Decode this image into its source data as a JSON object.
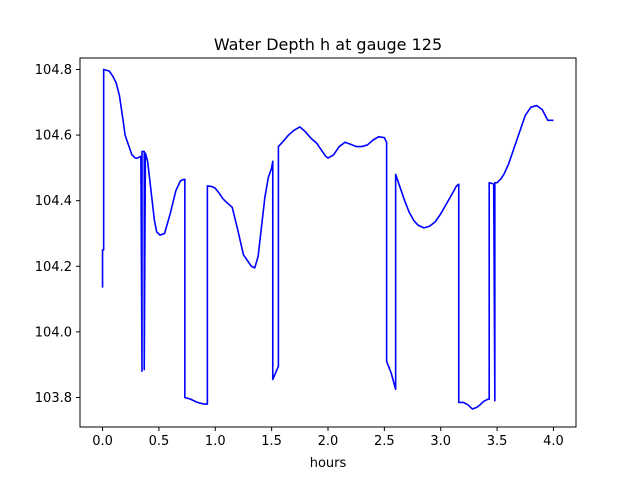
{
  "chart_data": {
    "type": "line",
    "title": "Water Depth h at gauge 125",
    "xlabel": "hours",
    "ylabel": "",
    "xlim": [
      -0.2,
      4.2
    ],
    "ylim": [
      103.71,
      104.835
    ],
    "xticks": [
      0.0,
      0.5,
      1.0,
      1.5,
      2.0,
      2.5,
      3.0,
      3.5,
      4.0
    ],
    "xtick_labels": [
      "0.0",
      "0.5",
      "1.0",
      "1.5",
      "2.0",
      "2.5",
      "3.0",
      "3.5",
      "4.0"
    ],
    "yticks": [
      103.8,
      104.0,
      104.2,
      104.4,
      104.6,
      104.8
    ],
    "ytick_labels": [
      "103.8",
      "104.0",
      "104.2",
      "104.4",
      "104.6",
      "104.8"
    ],
    "grid": false,
    "legend": "none",
    "series": [
      {
        "color": "#0000ff",
        "x": [
          0.0,
          0.0,
          0.01,
          0.01,
          0.06,
          0.09,
          0.12,
          0.15,
          0.18,
          0.2,
          0.23,
          0.26,
          0.29,
          0.31,
          0.34,
          0.35,
          0.35,
          0.37,
          0.37,
          0.38,
          0.4,
          0.42,
          0.44,
          0.46,
          0.48,
          0.51,
          0.55,
          0.6,
          0.65,
          0.69,
          0.72,
          0.73,
          0.73,
          0.78,
          0.84,
          0.9,
          0.93,
          0.93,
          0.97,
          1.0,
          1.03,
          1.07,
          1.1,
          1.15,
          1.2,
          1.25,
          1.27,
          1.32,
          1.35,
          1.38,
          1.41,
          1.44,
          1.47,
          1.5,
          1.51,
          1.51,
          1.56,
          1.56,
          1.6,
          1.65,
          1.7,
          1.75,
          1.8,
          1.85,
          1.9,
          1.95,
          1.98,
          2.0,
          2.05,
          2.1,
          2.15,
          2.2,
          2.25,
          2.3,
          2.35,
          2.4,
          2.45,
          2.5,
          2.52,
          2.52,
          2.56,
          2.6,
          2.6,
          2.64,
          2.68,
          2.72,
          2.76,
          2.8,
          2.85,
          2.9,
          2.95,
          3.0,
          3.05,
          3.1,
          3.14,
          3.16,
          3.16,
          3.2,
          3.24,
          3.28,
          3.32,
          3.35,
          3.38,
          3.42,
          3.43,
          3.43,
          3.46,
          3.46,
          3.47,
          3.47,
          3.48,
          3.48,
          3.5,
          3.53,
          3.56,
          3.6,
          3.65,
          3.7,
          3.75,
          3.8,
          3.85,
          3.9,
          3.95,
          4.0
        ],
        "y": [
          104.135,
          104.25,
          104.25,
          104.8,
          104.795,
          104.78,
          104.76,
          104.72,
          104.65,
          104.6,
          104.57,
          104.54,
          104.53,
          104.53,
          104.535,
          103.88,
          104.55,
          104.55,
          103.885,
          104.545,
          104.52,
          104.46,
          104.4,
          104.34,
          104.305,
          104.295,
          104.3,
          104.36,
          104.43,
          104.46,
          104.465,
          104.465,
          103.8,
          103.795,
          103.785,
          103.78,
          103.78,
          104.445,
          104.443,
          104.438,
          104.425,
          104.405,
          104.395,
          104.38,
          104.31,
          104.235,
          104.225,
          104.2,
          104.195,
          104.23,
          104.32,
          104.41,
          104.47,
          104.5,
          104.52,
          103.855,
          103.895,
          104.565,
          104.58,
          104.6,
          104.615,
          104.625,
          104.61,
          104.59,
          104.575,
          104.55,
          104.535,
          104.53,
          104.54,
          104.565,
          104.578,
          104.572,
          104.565,
          104.565,
          104.57,
          104.585,
          104.595,
          104.592,
          104.578,
          103.91,
          103.875,
          103.825,
          104.48,
          104.44,
          104.4,
          104.365,
          104.34,
          104.325,
          104.317,
          104.322,
          104.335,
          104.36,
          104.39,
          104.42,
          104.445,
          104.45,
          103.785,
          103.785,
          103.778,
          103.765,
          103.77,
          103.778,
          103.788,
          103.795,
          103.795,
          104.455,
          104.452,
          104.452,
          104.45,
          104.45,
          103.79,
          104.455,
          104.455,
          104.465,
          104.48,
          104.51,
          104.56,
          104.61,
          104.66,
          104.685,
          104.69,
          104.678,
          104.645,
          104.645
        ]
      }
    ]
  }
}
